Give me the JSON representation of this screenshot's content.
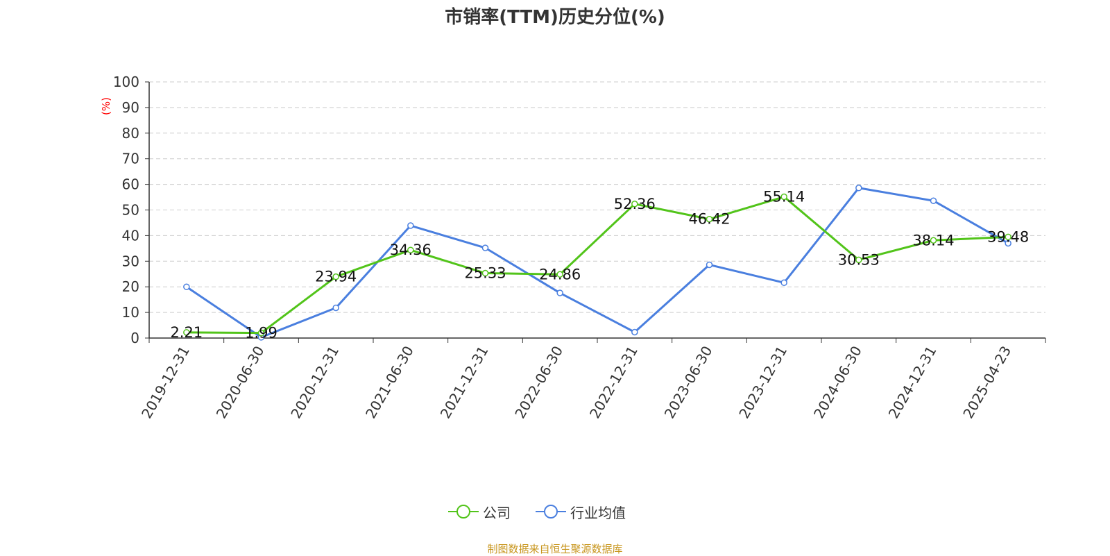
{
  "chart_data": {
    "type": "line",
    "title": "市销率(TTM)历史分位(%)",
    "ylabel": "(%)",
    "xlabel": "",
    "ylim": [
      0,
      100
    ],
    "yticks": [
      0,
      10,
      20,
      30,
      40,
      50,
      60,
      70,
      80,
      90,
      100
    ],
    "grid": true,
    "legend_position": "bottom-center",
    "categories": [
      "2019-12-31",
      "2020-06-30",
      "2020-12-31",
      "2021-06-30",
      "2021-12-31",
      "2022-06-30",
      "2022-12-31",
      "2023-06-30",
      "2023-12-31",
      "2024-06-30",
      "2024-12-31",
      "2025-04-23"
    ],
    "series": [
      {
        "name": "公司",
        "color": "#52c41a",
        "values": [
          2.21,
          1.99,
          23.94,
          34.36,
          25.33,
          24.86,
          52.36,
          46.42,
          55.14,
          30.53,
          38.14,
          39.48
        ],
        "labels": [
          "2.21",
          "1.99",
          "23.94",
          "34.36",
          "25.33",
          "24.86",
          "52.36",
          "46.42",
          "55.14",
          "30.53",
          "38.14",
          "39.48"
        ]
      },
      {
        "name": "行业均值",
        "color": "#4a7fdf",
        "values": [
          20.0,
          0.3,
          11.8,
          43.9,
          35.2,
          17.6,
          2.3,
          28.6,
          21.6,
          58.6,
          53.6,
          37.0
        ]
      }
    ],
    "source": "制图数据来自恒生聚源数据库"
  }
}
